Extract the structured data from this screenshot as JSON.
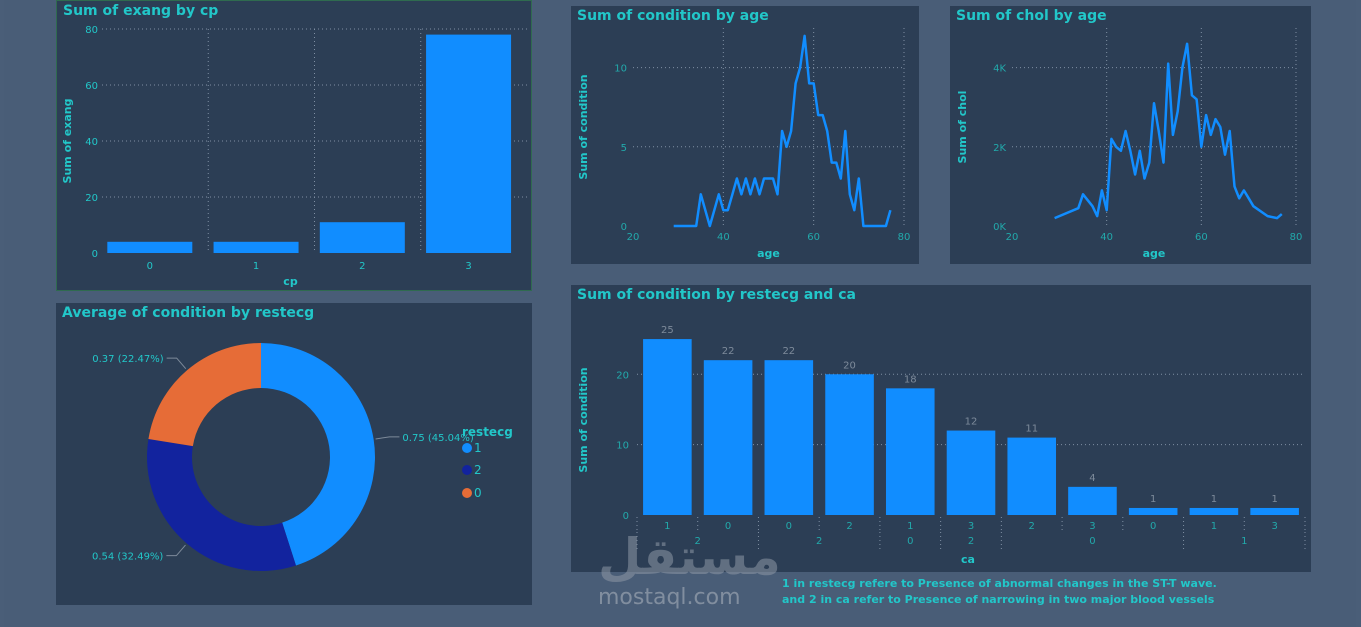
{
  "colors": {
    "background": "#495d77",
    "panel": "#2c3e55",
    "accent": "#22c7c9",
    "bar": "#118dff",
    "donut_1": "#118dff",
    "donut_2": "#12239e",
    "donut_0": "#e66c37"
  },
  "note": {
    "line1": "1 in restecg refere to Presence of abnormal changes in the ST-T wave.",
    "line2": "and 2 in ca refer to Presence of narrowing in two major blood vessels"
  },
  "watermark": {
    "arabic": "مستقل",
    "latin": "mostaql.com"
  },
  "chart_data": [
    {
      "id": "exang_by_cp",
      "type": "bar",
      "title": "Sum of exang by cp",
      "xlabel": "cp",
      "ylabel": "Sum of exang",
      "categories": [
        "0",
        "1",
        "2",
        "3"
      ],
      "values": [
        4,
        4,
        11,
        78
      ],
      "ylim": [
        0,
        80
      ],
      "yticks": [
        "0",
        "20",
        "40",
        "60",
        "80"
      ],
      "grid": true
    },
    {
      "id": "condition_by_age",
      "type": "line",
      "title": "Sum of condition by age",
      "xlabel": "age",
      "ylabel": "Sum of condition",
      "x": [
        29,
        34,
        35,
        37,
        38,
        39,
        40,
        41,
        42,
        43,
        44,
        45,
        46,
        47,
        48,
        49,
        50,
        51,
        52,
        53,
        54,
        55,
        56,
        57,
        58,
        59,
        60,
        61,
        62,
        63,
        64,
        65,
        66,
        67,
        68,
        69,
        70,
        71,
        74,
        76,
        77
      ],
      "y": [
        0,
        0,
        2,
        0,
        1,
        2,
        1,
        1,
        2,
        3,
        2,
        3,
        2,
        3,
        2,
        3,
        3,
        3,
        2,
        6,
        5,
        6,
        9,
        10,
        12,
        9,
        9,
        7,
        7,
        6,
        4,
        4,
        3,
        6,
        2,
        1,
        3,
        0,
        0,
        0,
        1
      ],
      "xlim": [
        20,
        80
      ],
      "ylim": [
        0,
        12.5
      ],
      "xticks": [
        "20",
        "40",
        "60",
        "80"
      ],
      "yticks": [
        "0",
        "5",
        "10"
      ],
      "grid": true
    },
    {
      "id": "chol_by_age",
      "type": "line",
      "title": "Sum of chol by age",
      "xlabel": "age",
      "ylabel": "Sum of chol",
      "x": [
        29,
        34,
        35,
        37,
        38,
        39,
        40,
        41,
        42,
        43,
        44,
        45,
        46,
        47,
        48,
        49,
        50,
        51,
        52,
        53,
        54,
        55,
        56,
        57,
        58,
        59,
        60,
        61,
        62,
        63,
        64,
        65,
        66,
        67,
        68,
        69,
        70,
        71,
        74,
        76,
        77
      ],
      "y": [
        200,
        450,
        800,
        500,
        250,
        900,
        400,
        2200,
        2000,
        1900,
        2400,
        1900,
        1300,
        1900,
        1200,
        1600,
        3100,
        2400,
        1600,
        4100,
        2300,
        2900,
        4000,
        4600,
        3300,
        3200,
        2000,
        2800,
        2300,
        2700,
        2500,
        1800,
        2400,
        1000,
        700,
        900,
        700,
        500,
        250,
        200,
        300
      ],
      "xlim": [
        20,
        80
      ],
      "ylim": [
        0,
        5000
      ],
      "xticks": [
        "20",
        "40",
        "60",
        "80"
      ],
      "yticks": [
        "0K",
        "2K",
        "4K"
      ],
      "grid": true
    },
    {
      "id": "condition_by_restecg",
      "type": "pie",
      "title": "Average of condition by restecg",
      "legend_title": "restecg",
      "slices": [
        {
          "label": "1",
          "value": 0.75,
          "display": "0.75 (45.04%)",
          "pct": 45.04,
          "color": "#118dff"
        },
        {
          "label": "2",
          "value": 0.54,
          "display": "0.54 (32.49%)",
          "pct": 32.49,
          "color": "#12239e"
        },
        {
          "label": "0",
          "value": 0.37,
          "display": "0.37 (22.47%)",
          "pct": 22.47,
          "color": "#e66c37"
        }
      ],
      "legend_position": "right"
    },
    {
      "id": "condition_by_restecg_ca",
      "type": "bar",
      "title": "Sum of condition by restecg and ca",
      "xlabel": "ca",
      "ylabel": "Sum of condition",
      "inner_labels": [
        "1",
        "0",
        "0",
        "2",
        "1",
        "3",
        "2",
        "3",
        "0",
        "1",
        "3"
      ],
      "outer_groups": [
        {
          "label": "2",
          "span": 2
        },
        {
          "label": "2",
          "span": 2
        },
        {
          "label": "0",
          "span": 1
        },
        {
          "label": "2",
          "span": 1
        },
        {
          "label": "0",
          "span": 3
        },
        {
          "label": "1",
          "span": 2
        }
      ],
      "values": [
        25,
        22,
        22,
        20,
        18,
        12,
        11,
        4,
        1,
        1,
        1
      ],
      "ylim": [
        0,
        27
      ],
      "yticks": [
        "0",
        "10",
        "20"
      ],
      "grid": true
    }
  ]
}
